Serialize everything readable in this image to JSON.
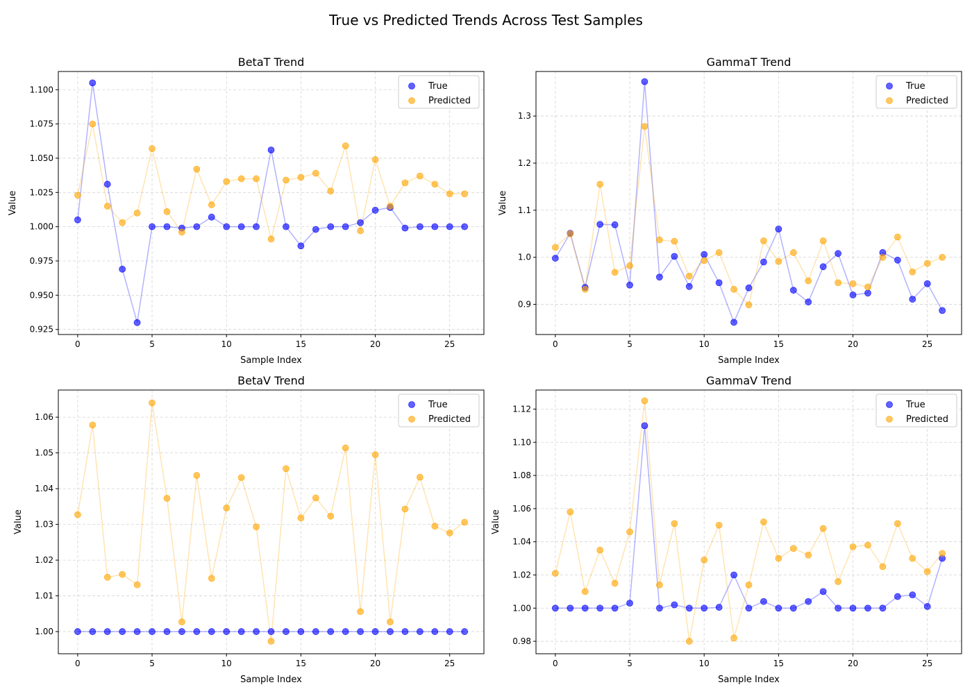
{
  "figure": {
    "title": "True vs Predicted Trends Across Test Samples"
  },
  "chart_data": [
    {
      "type": "scatter",
      "title": "BetaT Trend",
      "xlabel": "Sample Index",
      "ylabel": "Value",
      "xlim": [
        -1.3,
        27.3
      ],
      "ylim": [
        0.9213,
        1.1133
      ],
      "xticks": [
        0,
        5,
        10,
        15,
        20,
        25
      ],
      "yticks": [
        0.925,
        0.95,
        0.975,
        1.0,
        1.025,
        1.05,
        1.075,
        1.1
      ],
      "ytick_decimals": 3,
      "grid": true,
      "legend_position": "upper-right",
      "x": [
        0,
        1,
        2,
        3,
        4,
        5,
        6,
        7,
        8,
        9,
        10,
        11,
        12,
        13,
        14,
        15,
        16,
        17,
        18,
        19,
        20,
        21,
        22,
        23,
        24,
        25,
        26
      ],
      "series": [
        {
          "name": "True",
          "color": "#0000ff",
          "values": [
            1.005,
            1.105,
            1.031,
            0.969,
            0.93,
            1.0,
            1.0,
            0.999,
            1.0,
            1.007,
            1.0,
            1.0,
            1.0,
            1.056,
            1.0,
            0.986,
            0.998,
            1.0,
            1.0,
            1.003,
            1.012,
            1.014,
            0.999,
            1.0,
            1.0,
            1.0,
            1.0
          ]
        },
        {
          "name": "Predicted",
          "color": "#ffa500",
          "values": [
            1.023,
            1.075,
            1.015,
            1.003,
            1.01,
            1.057,
            1.011,
            0.996,
            1.042,
            1.016,
            1.033,
            1.035,
            1.035,
            0.991,
            1.034,
            1.036,
            1.039,
            1.026,
            1.059,
            0.997,
            1.049,
            1.015,
            1.032,
            1.037,
            1.031,
            1.024,
            1.024
          ]
        }
      ]
    },
    {
      "type": "scatter",
      "title": "GammaT Trend",
      "xlabel": "Sample Index",
      "ylabel": "Value",
      "xlim": [
        -1.3,
        27.3
      ],
      "ylim": [
        0.836,
        1.3946
      ],
      "xticks": [
        0,
        5,
        10,
        15,
        20,
        25
      ],
      "yticks": [
        0.9,
        1.0,
        1.1,
        1.2,
        1.3
      ],
      "ytick_decimals": 1,
      "grid": true,
      "legend_position": "upper-right",
      "x": [
        0,
        1,
        2,
        3,
        4,
        5,
        6,
        7,
        8,
        9,
        10,
        11,
        12,
        13,
        14,
        15,
        16,
        17,
        18,
        19,
        20,
        21,
        22,
        23,
        24,
        25,
        26
      ],
      "series": [
        {
          "name": "True",
          "color": "#0000ff",
          "values": [
            0.998,
            1.051,
            0.936,
            1.07,
            1.069,
            0.941,
            1.373,
            0.958,
            1.002,
            0.938,
            1.006,
            0.946,
            0.862,
            0.935,
            0.99,
            1.06,
            0.93,
            0.905,
            0.98,
            1.008,
            0.92,
            0.924,
            1.01,
            0.994,
            0.911,
            0.944,
            0.887
          ]
        },
        {
          "name": "Predicted",
          "color": "#ffa500",
          "values": [
            1.021,
            1.05,
            0.932,
            1.155,
            0.968,
            0.982,
            1.278,
            1.037,
            1.034,
            0.96,
            0.993,
            1.01,
            0.932,
            0.899,
            1.035,
            0.991,
            1.01,
            0.95,
            1.035,
            0.946,
            0.944,
            0.937,
            1.0,
            1.043,
            0.969,
            0.987,
            1.0
          ]
        }
      ]
    },
    {
      "type": "scatter",
      "title": "BetaV Trend",
      "xlabel": "Sample Index",
      "ylabel": "Value",
      "xlim": [
        -1.3,
        27.3
      ],
      "ylim": [
        0.9938,
        1.0676
      ],
      "xticks": [
        0,
        5,
        10,
        15,
        20,
        25
      ],
      "yticks": [
        1.0,
        1.01,
        1.02,
        1.03,
        1.04,
        1.05,
        1.06
      ],
      "ytick_decimals": 2,
      "grid": true,
      "legend_position": "upper-right",
      "x": [
        0,
        1,
        2,
        3,
        4,
        5,
        6,
        7,
        8,
        9,
        10,
        11,
        12,
        13,
        14,
        15,
        16,
        17,
        18,
        19,
        20,
        21,
        22,
        23,
        24,
        25,
        26
      ],
      "series": [
        {
          "name": "True",
          "color": "#0000ff",
          "values": [
            1.0,
            1.0,
            1.0,
            1.0,
            1.0,
            1.0,
            1.0,
            1.0,
            1.0,
            1.0,
            1.0,
            1.0,
            1.0,
            1.0,
            1.0,
            1.0,
            1.0,
            1.0,
            1.0,
            1.0,
            1.0,
            1.0,
            1.0,
            1.0,
            1.0,
            1.0,
            1.0
          ]
        },
        {
          "name": "Predicted",
          "color": "#ffa500",
          "values": [
            1.0327,
            1.0578,
            1.0152,
            1.016,
            1.0131,
            1.064,
            1.0373,
            1.0027,
            1.0437,
            1.0149,
            1.0346,
            1.0431,
            1.0293,
            0.9973,
            1.0456,
            1.0318,
            1.0374,
            1.0323,
            1.0514,
            1.0056,
            1.0495,
            1.0027,
            1.0343,
            1.0432,
            1.0295,
            1.0276,
            1.0306
          ]
        }
      ]
    },
    {
      "type": "scatter",
      "title": "GammaV Trend",
      "xlabel": "Sample Index",
      "ylabel": "Value",
      "xlim": [
        -1.3,
        27.3
      ],
      "ylim": [
        0.9725,
        1.1315
      ],
      "xticks": [
        0,
        5,
        10,
        15,
        20,
        25
      ],
      "yticks": [
        0.98,
        1.0,
        1.02,
        1.04,
        1.06,
        1.08,
        1.1,
        1.12
      ],
      "ytick_decimals": 2,
      "grid": true,
      "legend_position": "upper-right",
      "x": [
        0,
        1,
        2,
        3,
        4,
        5,
        6,
        7,
        8,
        9,
        10,
        11,
        12,
        13,
        14,
        15,
        16,
        17,
        18,
        19,
        20,
        21,
        22,
        23,
        24,
        25,
        26
      ],
      "series": [
        {
          "name": "True",
          "color": "#0000ff",
          "values": [
            1.0,
            1.0,
            1.0,
            1.0,
            1.0,
            1.003,
            1.11,
            1.0,
            1.002,
            1.0,
            1.0,
            1.0005,
            1.02,
            1.0,
            1.004,
            1.0,
            1.0,
            1.004,
            1.01,
            1.0,
            1.0,
            1.0,
            1.0,
            1.007,
            1.008,
            1.001,
            1.03
          ]
        },
        {
          "name": "Predicted",
          "color": "#ffa500",
          "values": [
            1.021,
            1.058,
            1.01,
            1.035,
            1.015,
            1.046,
            1.125,
            1.014,
            1.051,
            0.98,
            1.029,
            1.05,
            0.982,
            1.014,
            1.052,
            1.03,
            1.036,
            1.032,
            1.048,
            1.016,
            1.037,
            1.038,
            1.025,
            1.051,
            1.03,
            1.022,
            1.033
          ]
        }
      ]
    }
  ]
}
